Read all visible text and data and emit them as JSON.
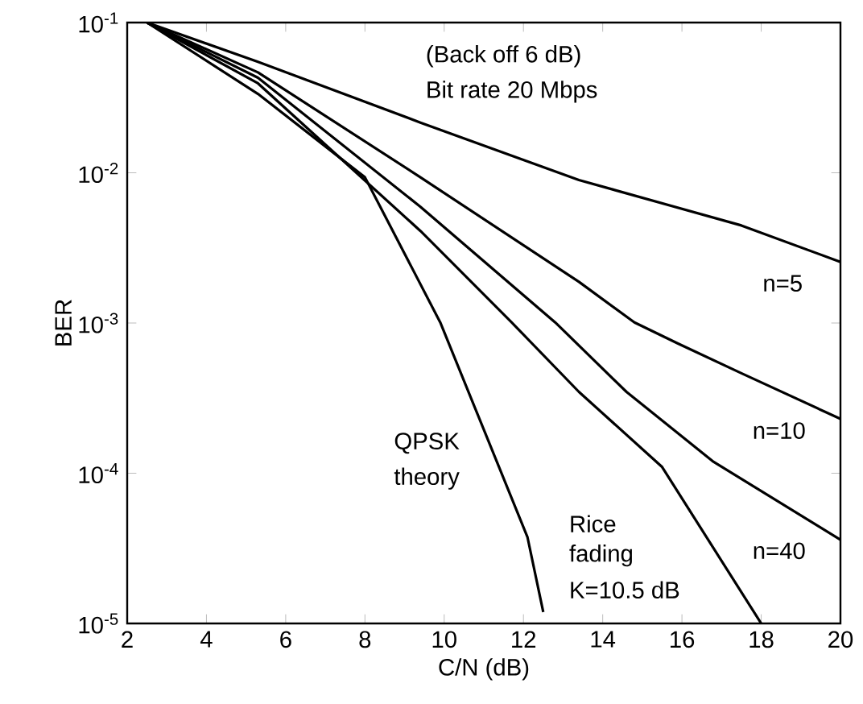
{
  "chart_data": {
    "type": "line",
    "xlabel": "C/N (dB)",
    "ylabel": "BER",
    "log": "y",
    "grid": false,
    "marker": "none",
    "line_style": "solid",
    "xlim": [
      2,
      20
    ],
    "xticks": [
      2,
      4,
      6,
      8,
      10,
      12,
      14,
      16,
      18,
      20
    ],
    "ylim": [
      1e-05,
      0.1
    ],
    "yticks": [
      {
        "value": 0.1,
        "label": "10$^{-1}$"
      },
      {
        "value": 0.01,
        "label": "10$^{-2}$"
      },
      {
        "value": 0.001,
        "label": "10$^{-3}$"
      },
      {
        "value": 0.0001,
        "label": "10$^{-4}$"
      },
      {
        "value": 1e-05,
        "label": "10$^{-5}$"
      }
    ],
    "series": [
      {
        "color": "#000000",
        "x": [
          2.5,
          5.3,
          9.4,
          13.4,
          17.5,
          20
        ],
        "values": [
          0.1,
          0.0548,
          0.0216,
          0.00895,
          0.00446,
          0.00255
        ]
      },
      {
        "color": "#000000",
        "x": [
          2.5,
          5.3,
          9.4,
          13.4,
          14.8,
          15.9,
          17.5,
          20
        ],
        "values": [
          0.1,
          0.0466,
          0.00933,
          0.00188,
          0.00101,
          0.00073,
          0.000463,
          0.00023
        ]
      },
      {
        "color": "#000000",
        "x": [
          2.5,
          5.3,
          9.4,
          12.8,
          14.6,
          16.8,
          20
        ],
        "values": [
          0.1,
          0.0429,
          0.00594,
          0.00101,
          0.000348,
          0.000119,
          3.61e-05
        ]
      },
      {
        "color": "#000000",
        "x": [
          2.5,
          5.3,
          9.4,
          11.7,
          13.4,
          15.5,
          18.0
        ],
        "values": [
          0.1,
          0.0394,
          0.0041,
          0.00101,
          0.000348,
          0.00011,
          1e-05
        ]
      },
      {
        "color": "#000000",
        "x": [
          2.5,
          5.3,
          8.0,
          9.9,
          11.0,
          12.1,
          12.5
        ],
        "values": [
          0.1,
          0.0335,
          0.00933,
          0.00101,
          0.000195,
          3.77e-05,
          1.19e-05
        ]
      }
    ],
    "annotations": [
      "(Back off  6 dB)",
      "Bit rate  20 Mbps",
      "n=5",
      "n=10",
      "n=40",
      "QPSK",
      "theory",
      "Rice",
      "fading",
      "K=10.5 dB"
    ]
  }
}
